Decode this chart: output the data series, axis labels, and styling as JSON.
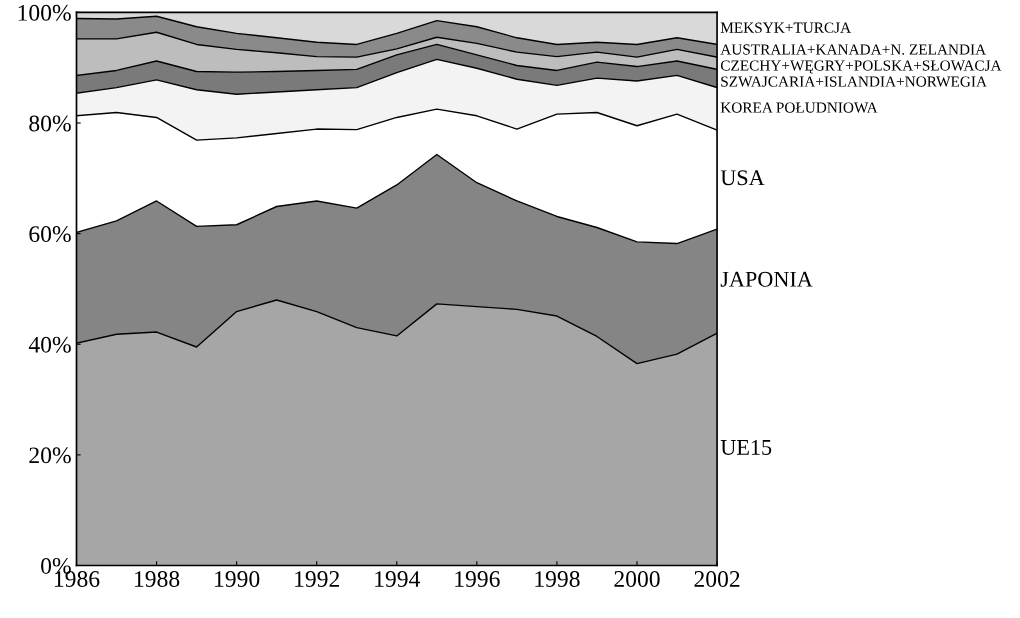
{
  "chart_data": {
    "type": "area",
    "stacked": true,
    "x": [
      1986,
      1987,
      1988,
      1989,
      1990,
      1991,
      1992,
      1993,
      1994,
      1995,
      1996,
      1997,
      1998,
      1999,
      2000,
      2001,
      2002
    ],
    "series": [
      {
        "name": "UE15",
        "color": "#a6a6a6",
        "values": [
          40.2,
          41.8,
          42.2,
          39.5,
          45.9,
          48.0,
          45.9,
          43.0,
          41.5,
          47.3,
          46.8,
          46.3,
          45.1,
          41.4,
          36.5,
          38.2,
          42.0
        ]
      },
      {
        "name": "JAPONIA",
        "color": "#858585",
        "values": [
          20.0,
          20.5,
          23.7,
          21.8,
          15.7,
          16.9,
          20.0,
          21.6,
          27.3,
          27.0,
          22.4,
          19.6,
          18.0,
          19.7,
          22.0,
          20.0,
          18.8
        ]
      },
      {
        "name": "USA",
        "color": "#ffffff",
        "values": [
          21.1,
          19.6,
          15.1,
          15.6,
          15.7,
          13.2,
          13.0,
          14.2,
          12.2,
          8.2,
          12.1,
          13.0,
          18.5,
          20.8,
          21.0,
          23.4,
          17.9
        ]
      },
      {
        "name": "KOREA POŁUDNIOWA",
        "color": "#f3f3f3",
        "values": [
          4.1,
          4.5,
          6.8,
          9.1,
          7.9,
          7.5,
          7.1,
          7.6,
          8.1,
          9.0,
          8.6,
          9.0,
          5.2,
          6.2,
          8.1,
          7.0,
          7.7
        ]
      },
      {
        "name": "SZWAJCARIA+ISLANDIA+NORWEGIA",
        "color": "#7a7a7a",
        "values": [
          3.2,
          3.1,
          3.4,
          3.3,
          4.0,
          3.7,
          3.5,
          3.3,
          3.2,
          2.7,
          2.4,
          2.5,
          2.7,
          2.9,
          2.6,
          2.6,
          3.3
        ]
      },
      {
        "name": "CZECHY+WĘGRY+POLSKA+SŁOWACJA",
        "color": "#bdbdbd",
        "values": [
          6.6,
          5.7,
          5.2,
          4.9,
          4.1,
          3.4,
          2.5,
          2.2,
          1.1,
          1.3,
          2.1,
          2.4,
          2.5,
          1.8,
          1.7,
          2.1,
          2.2
        ]
      },
      {
        "name": "AUSTRALIA+KANADA+N. ZELANDIA",
        "color": "#8a8a8a",
        "values": [
          3.7,
          3.6,
          2.9,
          3.2,
          2.9,
          2.7,
          2.6,
          2.3,
          2.8,
          3.0,
          3.0,
          2.6,
          2.2,
          1.8,
          2.3,
          2.1,
          2.3
        ]
      },
      {
        "name": "MEKSYK+TURCJA",
        "color": "#d9d9d9",
        "values": [
          1.1,
          1.2,
          0.7,
          2.6,
          3.8,
          4.6,
          5.4,
          5.8,
          3.8,
          1.5,
          2.6,
          4.6,
          5.8,
          5.4,
          5.8,
          4.6,
          5.8
        ]
      }
    ],
    "xlim": [
      1986,
      2002
    ],
    "xticks": [
      1986,
      1988,
      1990,
      1992,
      1994,
      1996,
      1998,
      2000,
      2002
    ],
    "ylim": [
      0,
      100
    ],
    "yticks": [
      {
        "value": 0,
        "label": "0%"
      },
      {
        "value": 20,
        "label": "20%"
      },
      {
        "value": 40,
        "label": "40%"
      },
      {
        "value": 60,
        "label": "60%"
      },
      {
        "value": 80,
        "label": "80%"
      },
      {
        "value": 100,
        "label": "100%"
      }
    ],
    "grid": false,
    "legend": false
  }
}
